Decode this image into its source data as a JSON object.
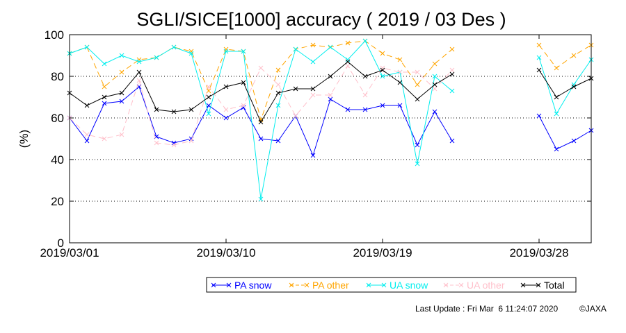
{
  "chart_data": {
    "type": "line",
    "title": "SGLI/SICE[1000] accuracy ( 2019 / 03 Des )",
    "xlabel": "",
    "ylabel": "(%)",
    "ylim": [
      0,
      100
    ],
    "yticks": [
      "0",
      "20",
      "40",
      "60",
      "80",
      "100"
    ],
    "xlim": [
      "2019-03-01",
      "2019-03-31"
    ],
    "xticks": [
      {
        "date": "2019-03-01",
        "label": "2019/03/01"
      },
      {
        "date": "2019-03-10",
        "label": "2019/03/10"
      },
      {
        "date": "2019-03-19",
        "label": "2019/03/19"
      },
      {
        "date": "2019-03-28",
        "label": "2019/03/28"
      }
    ],
    "grid": "horizontal dotted",
    "legend_position": "bottom",
    "x": [
      "2019-03-01",
      "2019-03-02",
      "2019-03-03",
      "2019-03-04",
      "2019-03-05",
      "2019-03-06",
      "2019-03-07",
      "2019-03-08",
      "2019-03-09",
      "2019-03-10",
      "2019-03-11",
      "2019-03-12",
      "2019-03-13",
      "2019-03-14",
      "2019-03-15",
      "2019-03-16",
      "2019-03-17",
      "2019-03-18",
      "2019-03-19",
      "2019-03-20",
      "2019-03-21",
      "2019-03-22",
      "2019-03-23",
      "2019-03-24",
      "2019-03-25",
      "2019-03-26",
      "2019-03-27",
      "2019-03-28",
      "2019-03-29",
      "2019-03-30",
      "2019-03-31"
    ],
    "series": [
      {
        "name": "PA snow",
        "color": "#0000ff",
        "dash": "solid",
        "values": [
          60,
          49,
          67,
          68,
          75,
          51,
          48,
          50,
          66,
          60,
          65,
          50,
          49,
          61,
          42,
          69,
          64,
          64,
          66,
          66,
          47,
          63,
          49,
          null,
          null,
          null,
          null,
          61,
          45,
          49,
          54
        ]
      },
      {
        "name": "PA other",
        "color": "#ffa500",
        "dash": "8,5",
        "values": [
          91,
          94,
          75,
          82,
          88,
          89,
          94,
          92,
          73,
          93,
          92,
          59,
          83,
          93,
          95,
          94,
          96,
          97,
          91,
          88,
          76,
          86,
          93,
          null,
          null,
          null,
          null,
          95,
          84,
          90,
          95
        ]
      },
      {
        "name": "UA snow",
        "color": "#00eeee",
        "dash": "solid",
        "values": [
          91,
          94,
          86,
          90,
          87,
          89,
          94,
          91,
          62,
          92,
          92,
          21,
          66,
          93,
          87,
          94,
          88,
          97,
          80,
          82,
          38,
          80,
          73,
          null,
          null,
          null,
          null,
          89,
          62,
          76,
          88
        ]
      },
      {
        "name": "UA other",
        "color": "#ffc0cb",
        "dash": "8,5",
        "values": [
          60,
          52,
          50,
          52,
          78,
          48,
          47,
          49,
          75,
          64,
          66,
          84,
          76,
          61,
          71,
          71,
          85,
          71,
          84,
          82,
          82,
          74,
          83,
          null,
          null,
          null,
          null,
          null,
          null,
          null,
          null
        ]
      },
      {
        "name": "Total",
        "color": "#000000",
        "dash": "solid",
        "values": [
          72,
          66,
          70,
          72,
          82,
          64,
          63,
          64,
          70,
          75,
          77,
          58,
          72,
          74,
          74,
          80,
          87,
          80,
          83,
          77,
          69,
          76,
          81,
          null,
          null,
          null,
          null,
          83,
          70,
          75,
          79
        ]
      }
    ]
  },
  "footer": {
    "last_update": "Last Update : Fri Mar  6 11:24:07 2020",
    "copyright": "©JAXA"
  }
}
